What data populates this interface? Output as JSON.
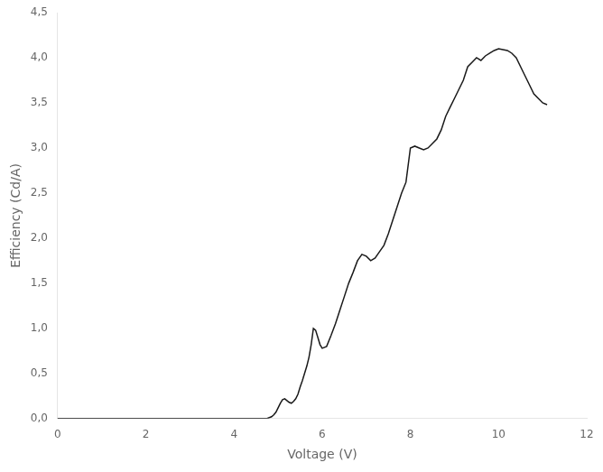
{
  "chart_data": {
    "type": "line",
    "xlabel": "Voltage (V)",
    "ylabel": "Efficiency (Cd/A)",
    "x": [
      0.0,
      1.0,
      2.0,
      3.0,
      4.0,
      4.5,
      4.6,
      4.7,
      4.75,
      4.8,
      4.85,
      4.9,
      4.95,
      5.0,
      5.05,
      5.1,
      5.15,
      5.2,
      5.25,
      5.3,
      5.35,
      5.4,
      5.45,
      5.5,
      5.55,
      5.6,
      5.65,
      5.7,
      5.75,
      5.8,
      5.85,
      5.9,
      5.95,
      6.0,
      6.1,
      6.2,
      6.3,
      6.4,
      6.5,
      6.6,
      6.7,
      6.8,
      6.9,
      7.0,
      7.1,
      7.2,
      7.3,
      7.4,
      7.5,
      7.6,
      7.7,
      7.8,
      7.9,
      8.0,
      8.1,
      8.2,
      8.3,
      8.4,
      8.5,
      8.6,
      8.7,
      8.8,
      8.9,
      9.0,
      9.1,
      9.2,
      9.3,
      9.4,
      9.5,
      9.6,
      9.7,
      9.8,
      9.9,
      10.0,
      10.1,
      10.2,
      10.3,
      10.4,
      10.5,
      10.6,
      10.7,
      10.8,
      10.9,
      11.0,
      11.1
    ],
    "values": [
      0.0,
      0.0,
      0.0,
      0.0,
      0.0,
      0.0,
      0.0,
      0.0,
      0.0,
      0.01,
      0.02,
      0.04,
      0.07,
      0.12,
      0.17,
      0.21,
      0.22,
      0.2,
      0.18,
      0.17,
      0.19,
      0.22,
      0.27,
      0.35,
      0.42,
      0.5,
      0.58,
      0.68,
      0.82,
      1.0,
      0.98,
      0.9,
      0.82,
      0.78,
      0.8,
      0.92,
      1.05,
      1.2,
      1.35,
      1.5,
      1.62,
      1.75,
      1.82,
      1.8,
      1.75,
      1.78,
      1.85,
      1.92,
      2.05,
      2.2,
      2.35,
      2.5,
      2.62,
      3.0,
      3.02,
      3.0,
      2.98,
      3.0,
      3.05,
      3.1,
      3.2,
      3.35,
      3.45,
      3.55,
      3.65,
      3.75,
      3.9,
      3.95,
      4.0,
      3.97,
      4.02,
      4.05,
      4.08,
      4.1,
      4.09,
      4.08,
      4.05,
      4.0,
      3.9,
      3.8,
      3.7,
      3.6,
      3.55,
      3.5,
      3.48
    ],
    "color": "#1a1a1a",
    "xlim": [
      0,
      12
    ],
    "ylim": [
      0,
      4.5
    ],
    "xticks": [
      0,
      2,
      4,
      6,
      8,
      10,
      12
    ],
    "yticks": [
      {
        "value": 0.0,
        "label": "0,0"
      },
      {
        "value": 0.5,
        "label": "0,5"
      },
      {
        "value": 1.0,
        "label": "1,0"
      },
      {
        "value": 1.5,
        "label": "1,5"
      },
      {
        "value": 2.0,
        "label": "2,0"
      },
      {
        "value": 2.5,
        "label": "2,5"
      },
      {
        "value": 3.0,
        "label": "3,0"
      },
      {
        "value": 3.5,
        "label": "3,5"
      },
      {
        "value": 4.0,
        "label": "4,0"
      },
      {
        "value": 4.5,
        "label": "4,5"
      }
    ],
    "grid": false
  }
}
